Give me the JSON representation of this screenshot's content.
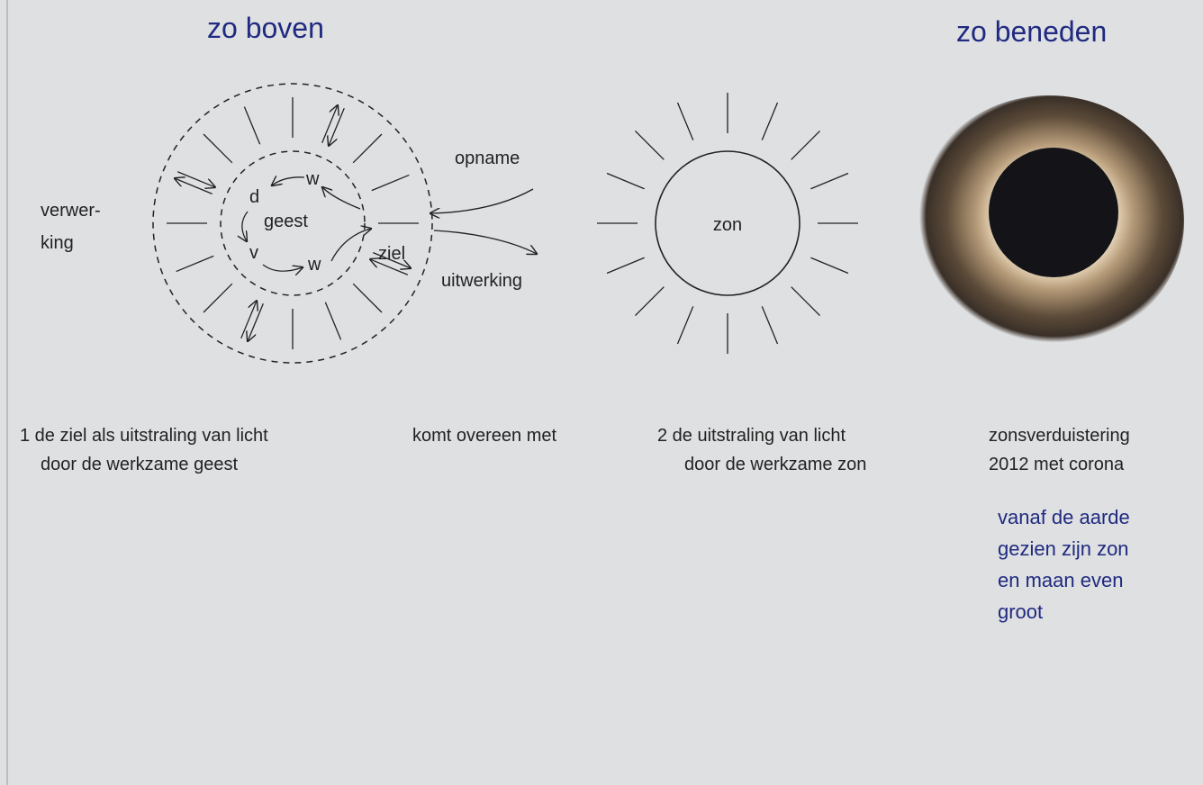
{
  "headings": {
    "left": "zo boven",
    "right": "zo beneden"
  },
  "soul_diagram": {
    "processing": [
      "verwer-",
      "king"
    ],
    "intake": "opname",
    "output": "uitwerking",
    "spirit": "geest",
    "soul": "ziel",
    "letters": [
      "d",
      "w",
      "v",
      "w"
    ]
  },
  "sun_diagram": {
    "label": "zon"
  },
  "captions": {
    "soul": [
      "1 de ziel als uitstraling van licht",
      "door de werkzame geest"
    ],
    "link": "komt overeen met",
    "sun": [
      "2 de uitstraling van licht",
      "door de werkzame zon"
    ],
    "eclipse": [
      "zonsverduistering",
      "2012 met corona"
    ]
  },
  "note": [
    "vanaf de aarde",
    "gezien zijn zon",
    "en maan even",
    "groot"
  ]
}
